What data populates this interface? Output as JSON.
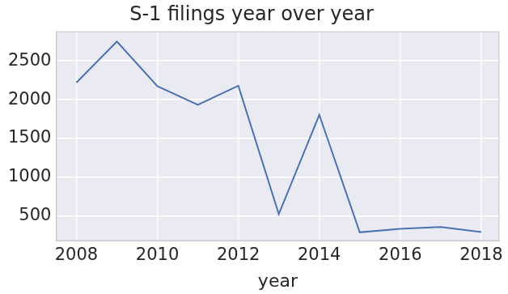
{
  "chart_data": {
    "type": "line",
    "title": "S-1 filings year over year",
    "x_label": "year",
    "x": [
      2008,
      2009,
      2010,
      2011,
      2012,
      2013,
      2014,
      2015,
      2016,
      2017,
      2018
    ],
    "values": [
      2220,
      2750,
      2175,
      1935,
      2180,
      525,
      1805,
      290,
      335,
      360,
      295
    ],
    "color": "#4c72b0",
    "xlim": [
      2007.5,
      2018.45
    ],
    "xticks": [
      2008,
      2010,
      2012,
      2014,
      2016,
      2018
    ],
    "ylim": [
      180,
      2880
    ],
    "yticks": [
      500,
      1000,
      1500,
      2000,
      2500
    ],
    "grid": true
  }
}
